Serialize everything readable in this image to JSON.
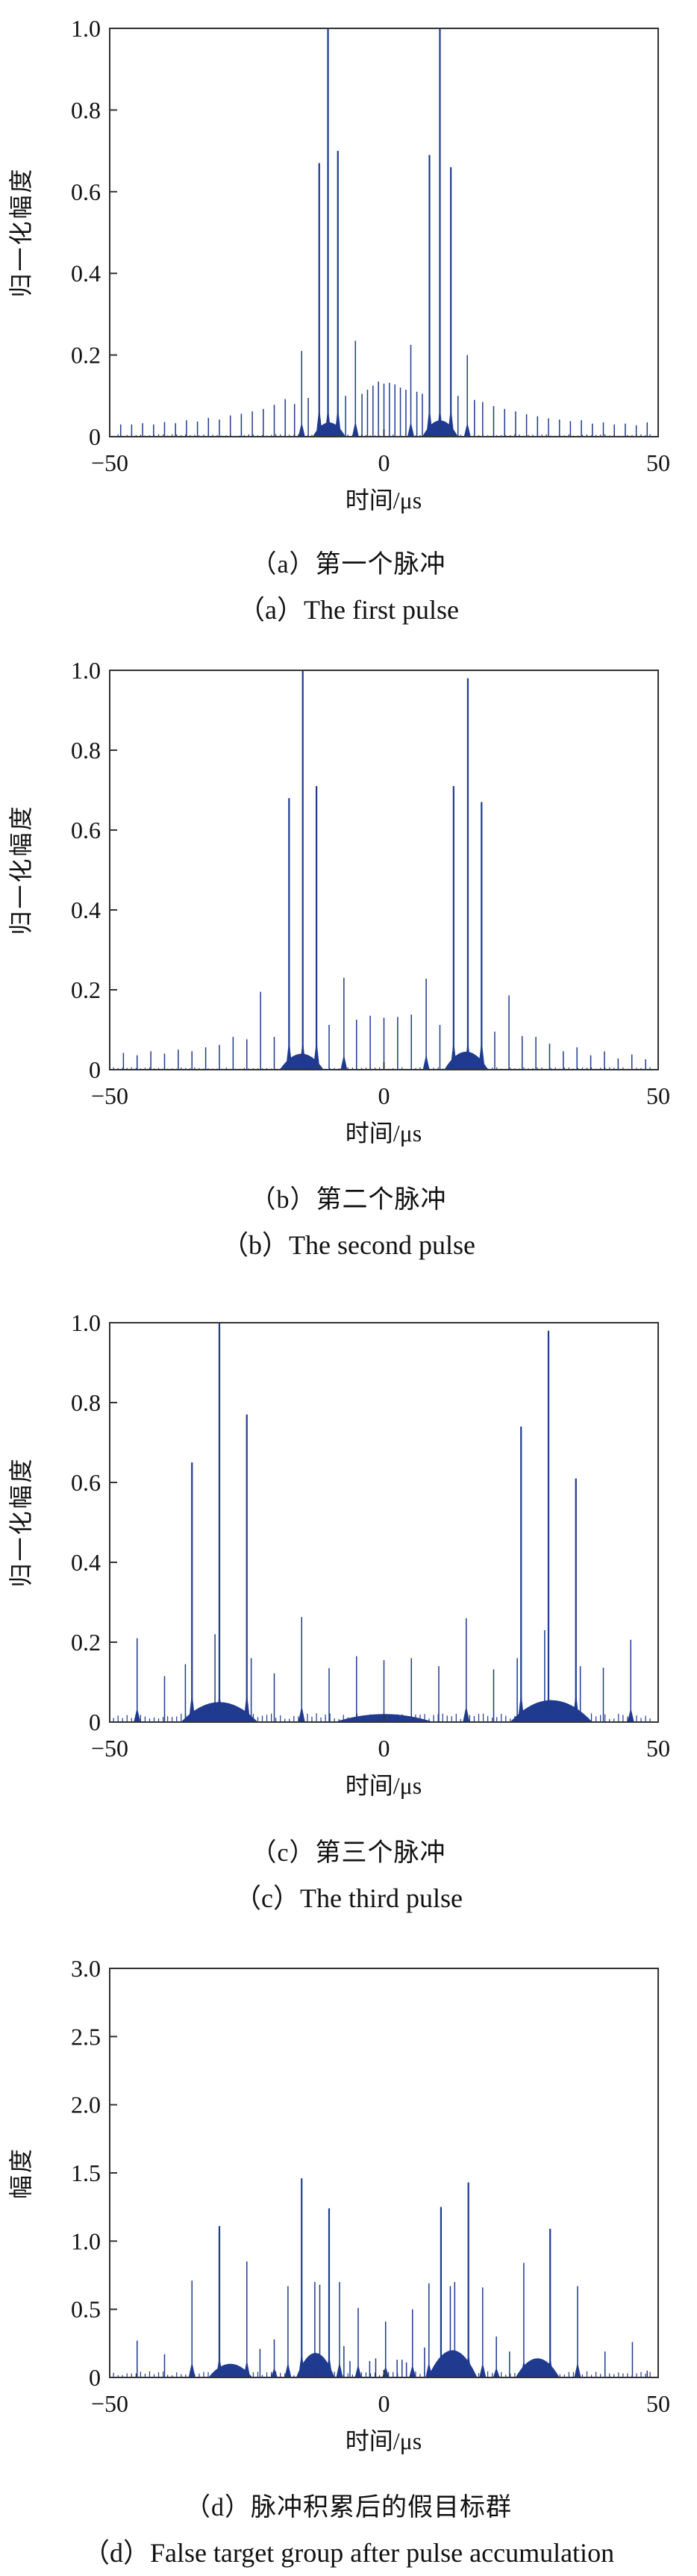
{
  "styles": {
    "spike_color": "#1f3a8f",
    "axis_color": "#333333",
    "text_color": "#111111",
    "background": "#ffffff"
  },
  "chart_data": [
    {
      "type": "stem",
      "id": "a",
      "title_zh": "（a）第一个脉冲",
      "title_en": "（a）The first pulse",
      "xlabel": "时间/μs",
      "ylabel": "归一化幅度",
      "xlim": [
        -50,
        50
      ],
      "ylim": [
        0,
        1.0
      ],
      "grid": false,
      "legend": "none",
      "xticks": [
        {
          "v": -50,
          "label": "−50"
        },
        {
          "v": 0,
          "label": "0"
        },
        {
          "v": 50,
          "label": "50"
        }
      ],
      "yticks": [
        {
          "v": 0,
          "label": "0"
        },
        {
          "v": 0.2,
          "label": "0.2"
        },
        {
          "v": 0.4,
          "label": "0.4"
        },
        {
          "v": 0.6,
          "label": "0.6"
        },
        {
          "v": 0.8,
          "label": "0.8"
        },
        {
          "v": 1.0,
          "label": "1.0"
        }
      ],
      "spikes": [
        [
          -48,
          0.03
        ],
        [
          -46,
          0.03
        ],
        [
          -44,
          0.033
        ],
        [
          -42,
          0.03
        ],
        [
          -40,
          0.036
        ],
        [
          -38,
          0.033
        ],
        [
          -36,
          0.04
        ],
        [
          -34,
          0.037
        ],
        [
          -32,
          0.046
        ],
        [
          -30,
          0.042
        ],
        [
          -28,
          0.052
        ],
        [
          -26,
          0.056
        ],
        [
          -24,
          0.062
        ],
        [
          -22,
          0.068
        ],
        [
          -20,
          0.078
        ],
        [
          -18,
          0.092
        ],
        [
          -16.3,
          0.08
        ],
        [
          -15,
          0.21
        ],
        [
          -13.8,
          0.095
        ],
        [
          -11.8,
          0.67
        ],
        [
          -10.2,
          1.0
        ],
        [
          -8.4,
          0.7
        ],
        [
          -7,
          0.1
        ],
        [
          -5.2,
          0.235
        ],
        [
          -4,
          0.105
        ],
        [
          -3,
          0.115
        ],
        [
          -2,
          0.125
        ],
        [
          -1,
          0.135
        ],
        [
          0,
          0.13
        ],
        [
          1,
          0.132
        ],
        [
          2,
          0.128
        ],
        [
          3,
          0.12
        ],
        [
          4,
          0.115
        ],
        [
          4.9,
          0.225
        ],
        [
          6,
          0.11
        ],
        [
          7,
          0.105
        ],
        [
          8.3,
          0.69
        ],
        [
          10.2,
          1.0
        ],
        [
          12.2,
          0.66
        ],
        [
          13.5,
          0.1
        ],
        [
          15.2,
          0.2
        ],
        [
          16.5,
          0.09
        ],
        [
          18,
          0.085
        ],
        [
          20,
          0.075
        ],
        [
          22,
          0.068
        ],
        [
          24,
          0.062
        ],
        [
          26,
          0.055
        ],
        [
          28,
          0.05
        ],
        [
          30,
          0.045
        ],
        [
          32,
          0.042
        ],
        [
          34,
          0.038
        ],
        [
          36,
          0.04
        ],
        [
          38,
          0.032
        ],
        [
          40,
          0.035
        ],
        [
          42,
          0.03
        ],
        [
          44,
          0.032
        ],
        [
          46,
          0.028
        ],
        [
          48,
          0.035
        ]
      ],
      "mounds": [
        [
          -13,
          -7,
          0.035
        ],
        [
          7,
          13.5,
          0.04
        ]
      ],
      "noise": 0.006
    },
    {
      "type": "stem",
      "id": "b",
      "title_zh": "（b）第二个脉冲",
      "title_en": "（b）The second pulse",
      "xlabel": "时间/μs",
      "ylabel": "归一化幅度",
      "xlim": [
        -50,
        50
      ],
      "ylim": [
        0,
        1.0
      ],
      "grid": false,
      "legend": "none",
      "xticks": [
        {
          "v": -50,
          "label": "−50"
        },
        {
          "v": 0,
          "label": "0"
        },
        {
          "v": 50,
          "label": "50"
        }
      ],
      "yticks": [
        {
          "v": 0,
          "label": "0"
        },
        {
          "v": 0.2,
          "label": "0.2"
        },
        {
          "v": 0.4,
          "label": "0.4"
        },
        {
          "v": 0.6,
          "label": "0.6"
        },
        {
          "v": 0.8,
          "label": "0.8"
        },
        {
          "v": 1.0,
          "label": "1.0"
        }
      ],
      "spikes": [
        [
          -47.5,
          0.042
        ],
        [
          -45,
          0.036
        ],
        [
          -42.5,
          0.046
        ],
        [
          -40,
          0.04
        ],
        [
          -37.5,
          0.05
        ],
        [
          -35,
          0.046
        ],
        [
          -32.5,
          0.056
        ],
        [
          -30,
          0.062
        ],
        [
          -27.5,
          0.082
        ],
        [
          -25,
          0.076
        ],
        [
          -22.5,
          0.195
        ],
        [
          -20,
          0.082
        ],
        [
          -17.3,
          0.68
        ],
        [
          -14.8,
          1.0
        ],
        [
          -12.3,
          0.71
        ],
        [
          -10,
          0.112
        ],
        [
          -7.3,
          0.23
        ],
        [
          -5,
          0.125
        ],
        [
          -2.5,
          0.135
        ],
        [
          0,
          0.13
        ],
        [
          2.5,
          0.132
        ],
        [
          5,
          0.138
        ],
        [
          7.7,
          0.228
        ],
        [
          10.2,
          0.112
        ],
        [
          12.7,
          0.71
        ],
        [
          15.3,
          0.98
        ],
        [
          17.8,
          0.67
        ],
        [
          20.2,
          0.095
        ],
        [
          22.8,
          0.186
        ],
        [
          25.2,
          0.084
        ],
        [
          27.7,
          0.082
        ],
        [
          30.2,
          0.065
        ],
        [
          32.7,
          0.046
        ],
        [
          35.2,
          0.056
        ],
        [
          37.7,
          0.036
        ],
        [
          40.2,
          0.046
        ],
        [
          42.7,
          0.028
        ],
        [
          45.2,
          0.038
        ],
        [
          47.7,
          0.026
        ]
      ],
      "mounds": [
        [
          -19,
          -11,
          0.04
        ],
        [
          11,
          19,
          0.045
        ]
      ],
      "noise": 0.006
    },
    {
      "type": "stem",
      "id": "c",
      "title_zh": "（c）第三个脉冲",
      "title_en": "（c）The third pulse",
      "xlabel": "时间/μs",
      "ylabel": "归一化幅度",
      "xlim": [
        -50,
        50
      ],
      "ylim": [
        0,
        1.0
      ],
      "grid": false,
      "legend": "none",
      "xticks": [
        {
          "v": -50,
          "label": "−50"
        },
        {
          "v": 0,
          "label": "0"
        },
        {
          "v": 50,
          "label": "50"
        }
      ],
      "yticks": [
        {
          "v": 0,
          "label": "0"
        },
        {
          "v": 0.2,
          "label": "0.2"
        },
        {
          "v": 0.4,
          "label": "0.4"
        },
        {
          "v": 0.6,
          "label": "0.6"
        },
        {
          "v": 0.8,
          "label": "0.8"
        },
        {
          "v": 1.0,
          "label": "1.0"
        }
      ],
      "spikes": [
        [
          -50,
          0.07
        ],
        [
          -45,
          0.21
        ],
        [
          -40,
          0.115
        ],
        [
          -36.2,
          0.145
        ],
        [
          -35,
          0.65
        ],
        [
          -30.8,
          0.22
        ],
        [
          -30,
          1.0
        ],
        [
          -25,
          0.77
        ],
        [
          -24.2,
          0.16
        ],
        [
          -20,
          0.122
        ],
        [
          -15,
          0.263
        ],
        [
          -10,
          0.135
        ],
        [
          -5,
          0.165
        ],
        [
          0,
          0.155
        ],
        [
          5,
          0.16
        ],
        [
          10,
          0.14
        ],
        [
          15,
          0.26
        ],
        [
          20,
          0.132
        ],
        [
          24.3,
          0.16
        ],
        [
          25,
          0.74
        ],
        [
          29.3,
          0.23
        ],
        [
          30,
          0.98
        ],
        [
          35,
          0.61
        ],
        [
          35.8,
          0.14
        ],
        [
          40,
          0.136
        ],
        [
          45,
          0.206
        ],
        [
          50,
          0.05
        ]
      ],
      "mounds": [
        [
          -37,
          -23,
          0.05
        ],
        [
          23,
          38,
          0.055
        ],
        [
          -9,
          9,
          0.02
        ]
      ],
      "noise": 0.022
    },
    {
      "type": "stem",
      "id": "d",
      "title_zh": "（d）脉冲积累后的假目标群",
      "title_en": "（d）False target group after pulse accumulation",
      "xlabel": "时间/μs",
      "ylabel": "幅度",
      "xlim": [
        -50,
        50
      ],
      "ylim": [
        0,
        3.0
      ],
      "grid": false,
      "legend": "none",
      "xticks": [
        {
          "v": -50,
          "label": "−50"
        },
        {
          "v": 0,
          "label": "0"
        },
        {
          "v": 50,
          "label": "50"
        }
      ],
      "yticks": [
        {
          "v": 0,
          "label": "0"
        },
        {
          "v": 0.5,
          "label": "0.5"
        },
        {
          "v": 1.0,
          "label": "1.0"
        },
        {
          "v": 1.5,
          "label": "1.5"
        },
        {
          "v": 2.0,
          "label": "2.0"
        },
        {
          "v": 2.5,
          "label": "2.5"
        },
        {
          "v": 3.0,
          "label": "3.0"
        }
      ],
      "spikes": [
        [
          -45,
          0.27
        ],
        [
          -40,
          0.17
        ],
        [
          -35,
          0.71
        ],
        [
          -30,
          1.11
        ],
        [
          -25,
          0.85
        ],
        [
          -22.6,
          0.21
        ],
        [
          -20,
          0.28
        ],
        [
          -17.5,
          0.67
        ],
        [
          -15,
          1.46
        ],
        [
          -12.6,
          0.7
        ],
        [
          -11.7,
          0.68
        ],
        [
          -10,
          1.24
        ],
        [
          -8.1,
          0.7
        ],
        [
          -7.3,
          0.23
        ],
        [
          -6.2,
          0.12
        ],
        [
          -4.7,
          0.51
        ],
        [
          -2.6,
          0.12
        ],
        [
          -1.5,
          0.14
        ],
        [
          0.3,
          0.41
        ],
        [
          2.4,
          0.13
        ],
        [
          3.3,
          0.13
        ],
        [
          4.1,
          0.11
        ],
        [
          5.2,
          0.5
        ],
        [
          7.4,
          0.22
        ],
        [
          8.2,
          0.69
        ],
        [
          10.4,
          1.25
        ],
        [
          12.1,
          0.67
        ],
        [
          12.9,
          0.7
        ],
        [
          15.4,
          1.43
        ],
        [
          18,
          0.66
        ],
        [
          20.5,
          0.3
        ],
        [
          22.9,
          0.19
        ],
        [
          25.5,
          0.84
        ],
        [
          28,
          0.09
        ],
        [
          30.3,
          1.09
        ],
        [
          35.3,
          0.67
        ],
        [
          40.3,
          0.19
        ],
        [
          45.3,
          0.26
        ],
        [
          48,
          0.05
        ]
      ],
      "mounds": [
        [
          -32,
          -24,
          0.1
        ],
        [
          -16,
          -9,
          0.18
        ],
        [
          8,
          17,
          0.2
        ],
        [
          24,
          32,
          0.14
        ]
      ],
      "noise": 0.045
    }
  ]
}
